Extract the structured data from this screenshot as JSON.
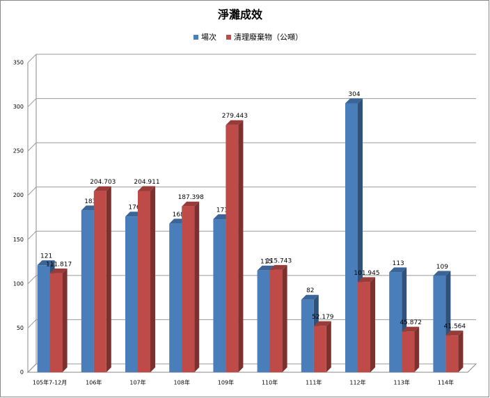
{
  "chart_data": {
    "type": "bar3d",
    "title": "淨灘成效",
    "categories": [
      "105年7-12月",
      "106年",
      "107年",
      "108年",
      "109年",
      "110年",
      "111年",
      "112年",
      "113年",
      "114年"
    ],
    "series": [
      {
        "name": "場次",
        "color": "#4a7ebb",
        "values": [
          121,
          183,
          176,
          168,
          173,
          115,
          82,
          304,
          113,
          109
        ]
      },
      {
        "name": "清理廢棄物（公噸）",
        "color": "#be4b48",
        "values": [
          111.817,
          204.703,
          204.911,
          187.398,
          279.443,
          115.743,
          52.179,
          101.945,
          45.872,
          41.564
        ]
      }
    ],
    "ylim": [
      0,
      350
    ],
    "yticks": [
      0,
      50,
      100,
      150,
      200,
      250,
      300,
      350
    ],
    "grid": true,
    "legend": "top"
  }
}
